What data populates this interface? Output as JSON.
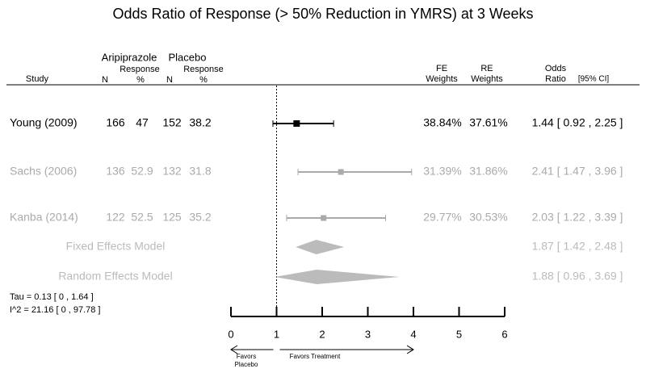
{
  "chart_data": {
    "type": "forest",
    "title": "Odds Ratio of Response (> 50% Reduction in YMRS) at 3 Weeks",
    "headers": {
      "study": "Study",
      "group1": "Aripiprazole",
      "group2": "Placebo",
      "n": "N",
      "response": "Response",
      "pct": "%",
      "fe": "FE",
      "re": "RE",
      "weights": "Weights",
      "odds": "Odds",
      "ratio": "Ratio",
      "ci": "[95% CI]"
    },
    "studies": [
      {
        "name": "Young (2009)",
        "n1": 166,
        "r1": 47,
        "n2": 152,
        "r2": 38.2,
        "fe_weight": "38.84%",
        "re_weight": "37.61%",
        "estimate": 1.44,
        "lower": 0.92,
        "upper": 2.25,
        "label": "1.44 [ 0.92 , 2.25 ]",
        "color": "#000000"
      },
      {
        "name": "Sachs (2006)",
        "n1": 136,
        "r1": 52.9,
        "n2": 132,
        "r2": 31.8,
        "fe_weight": "31.39%",
        "re_weight": "31.86%",
        "estimate": 2.41,
        "lower": 1.47,
        "upper": 3.96,
        "label": "2.41 [ 1.47 , 3.96 ]",
        "color": "#aaaaaa"
      },
      {
        "name": "Kanba (2014)",
        "n1": 122,
        "r1": 52.5,
        "n2": 125,
        "r2": 35.2,
        "fe_weight": "29.77%",
        "re_weight": "30.53%",
        "estimate": 2.03,
        "lower": 1.22,
        "upper": 3.39,
        "label": "2.03 [ 1.22 , 3.39 ]",
        "color": "#aaaaaa"
      }
    ],
    "summaries": [
      {
        "name": "Fixed Effects Model",
        "estimate": 1.87,
        "lower": 1.42,
        "upper": 2.48,
        "label": "1.87 [ 1.42 , 2.48 ]",
        "color": "#bbbbbb"
      },
      {
        "name": "Random Effects Model",
        "estimate": 1.88,
        "lower": 0.96,
        "upper": 3.69,
        "label": "1.88 [ 0.96 , 3.69 ]",
        "color": "#bbbbbb"
      }
    ],
    "stats": [
      "Tau = 0.13 [ 0 , 1.64 ]",
      "I^2 = 21.16 [ 0 , 97.78 ]"
    ],
    "xlim": [
      0,
      6
    ],
    "xticks": [
      0,
      1,
      2,
      3,
      4,
      5,
      6
    ],
    "ref_line": 1,
    "left_label": [
      "Favors",
      "Placebo"
    ],
    "right_label": "Favors Treatment"
  }
}
